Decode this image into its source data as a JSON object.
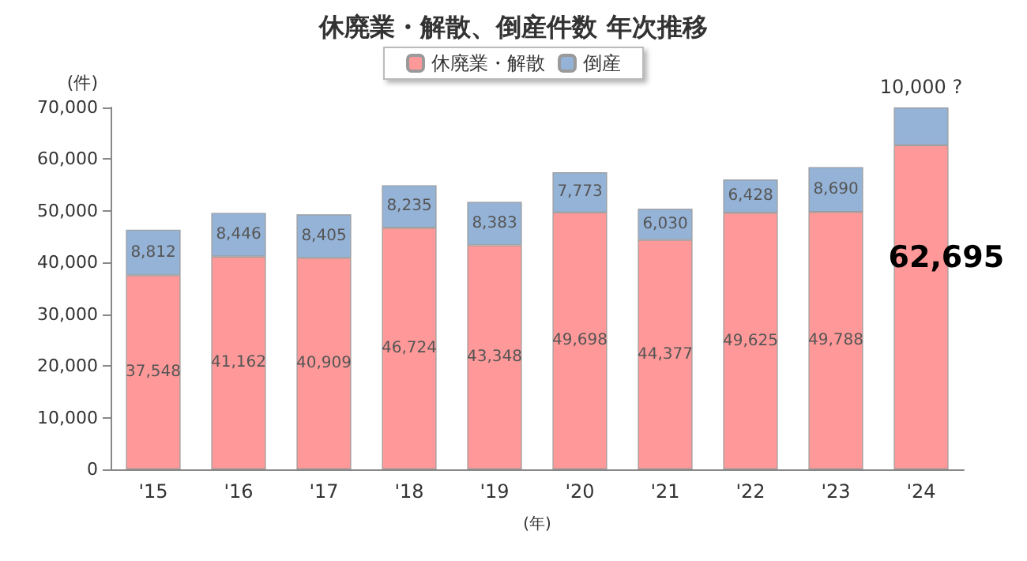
{
  "chart_data": {
    "type": "bar",
    "title": "休廃業・解散、倒産件数 年次推移",
    "categories": [
      "'15",
      "'16",
      "'17",
      "'18",
      "'19",
      "'20",
      "'21",
      "'22",
      "'23",
      "'24"
    ],
    "stacked": true,
    "series": [
      {
        "name": "休廃業・解散",
        "color": "#ff9999",
        "values": [
          37548,
          41162,
          40909,
          46724,
          43348,
          49698,
          44377,
          49625,
          49788,
          62695
        ],
        "value_labels": [
          "37,548",
          "41,162",
          "40,909",
          "46,724",
          "43,348",
          "49,698",
          "44,377",
          "49,625",
          "49,788",
          "62,695"
        ]
      },
      {
        "name": "倒産",
        "color": "#95b3d7",
        "values": [
          8812,
          8446,
          8405,
          8235,
          8383,
          7773,
          6030,
          6428,
          8690,
          7300
        ],
        "value_labels": [
          "8,812",
          "8,446",
          "8,405",
          "8,235",
          "8,383",
          "7,773",
          "6,030",
          "6,428",
          "8,690",
          null
        ]
      }
    ],
    "ylim": [
      0,
      70000
    ],
    "yticks": [
      0,
      {
        "value": 10000,
        "label": "10,000"
      },
      {
        "value": 20000,
        "label": "20,000"
      },
      {
        "value": 30000,
        "label": "30,000"
      },
      {
        "value": 40000,
        "label": "40,000"
      },
      {
        "value": 50000,
        "label": "50,000"
      },
      {
        "value": 60000,
        "label": "60,000"
      },
      {
        "value": 70000,
        "label": "70,000"
      }
    ],
    "ylabel": "(件)",
    "xlabel": "(年)",
    "annotations": [
      {
        "text": "10,000 ?",
        "x": "'24",
        "y": 70000
      }
    ],
    "legend": "top",
    "grid": false
  }
}
